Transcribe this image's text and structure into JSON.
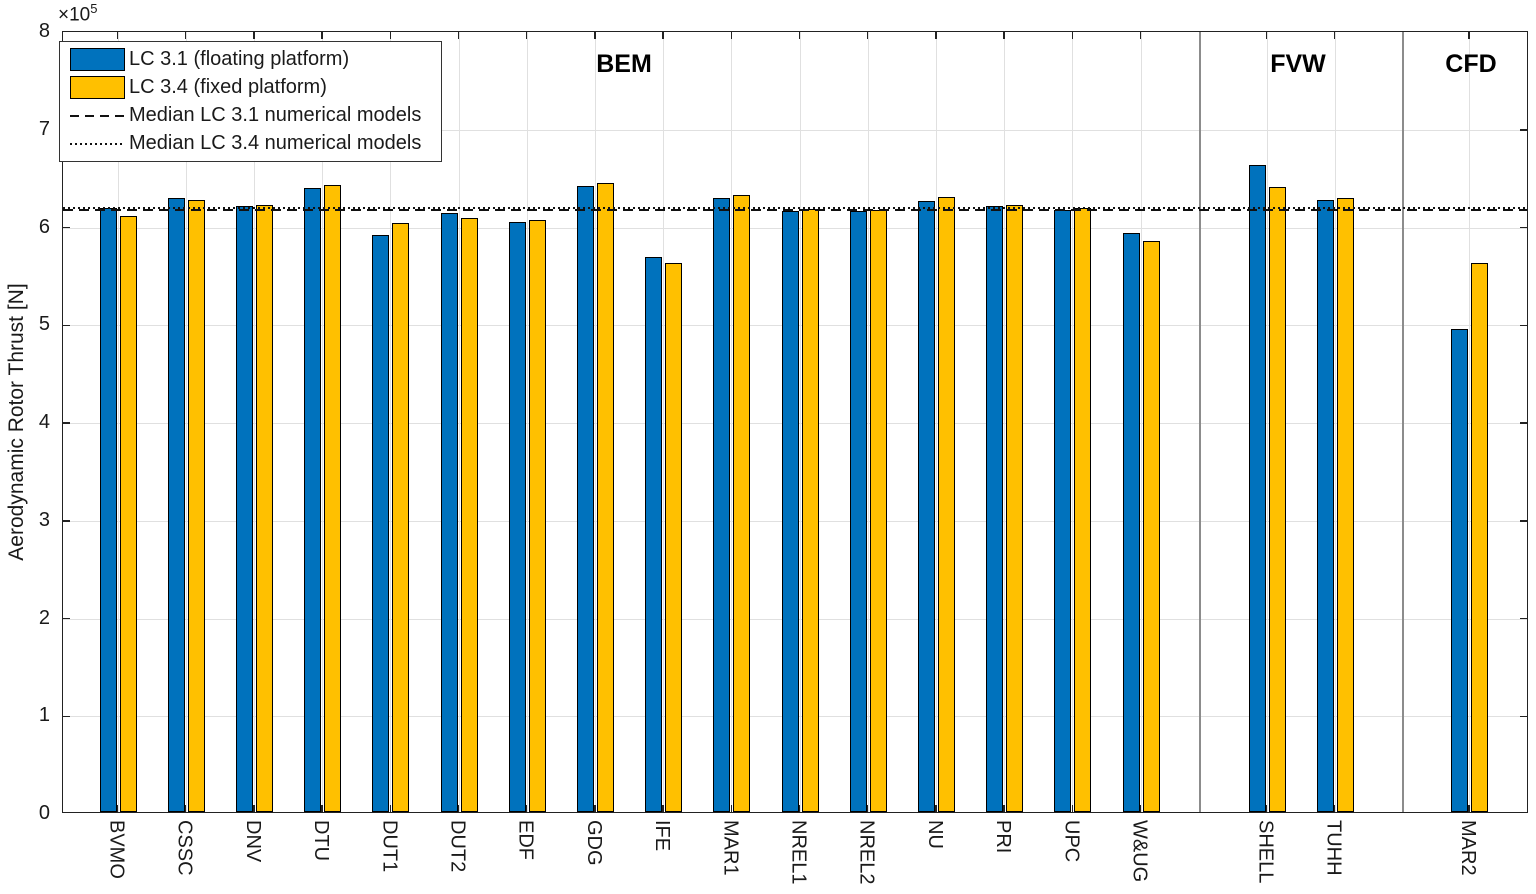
{
  "y_axis": {
    "label": "Aerodynamic Rotor Thrust [N]",
    "exponent_base": "×10",
    "exponent_power": "5",
    "ticks": [
      0,
      1,
      2,
      3,
      4,
      5,
      6,
      7,
      8
    ],
    "tick_scale": 100000
  },
  "legend": {
    "items": [
      {
        "label": "LC 3.1 (floating platform)",
        "type": "swatch",
        "color": "#0072BD"
      },
      {
        "label": "LC 3.4 (fixed platform)",
        "type": "swatch",
        "color": "#FFC000"
      },
      {
        "label": "Median LC 3.1 numerical models",
        "type": "line",
        "style": "dashed",
        "color": "#111111"
      },
      {
        "label": "Median LC 3.4 numerical models",
        "type": "line",
        "style": "dotted",
        "color": "#111111"
      }
    ]
  },
  "colors": {
    "lc31": "#0072BD",
    "lc34": "#FFC000",
    "grid": "#E0E0E0",
    "axis": "#222222",
    "separator": "#8C8C8C"
  },
  "chart_data": {
    "type": "bar",
    "title": "",
    "xlabel": "",
    "ylabel": "Aerodynamic Rotor Thrust [N]",
    "ylim": [
      0,
      800000
    ],
    "y_unit": "N",
    "grid": true,
    "legend_position": "top-left",
    "categories": [
      "BVMO",
      "CSSC",
      "DNV",
      "DTU",
      "DUT1",
      "DUT2",
      "EDF",
      "GDG",
      "IFE",
      "MAR1",
      "NREL1",
      "NREL2",
      "NU",
      "PRI",
      "UPC",
      "W&UG",
      "SHELL",
      "TUHH",
      "MAR2"
    ],
    "series": [
      {
        "name": "LC 3.1 (floating platform)",
        "color": "#0072BD",
        "values": [
          618000,
          628000,
          620000,
          638000,
          590000,
          613000,
          604000,
          640000,
          568000,
          628000,
          615000,
          615000,
          625000,
          620000,
          616000,
          592000,
          662000,
          626000,
          494000
        ]
      },
      {
        "name": "LC 3.4 (fixed platform)",
        "color": "#FFC000",
        "values": [
          610000,
          626000,
          621000,
          641000,
          603000,
          608000,
          606000,
          644000,
          562000,
          631000,
          617000,
          616000,
          629000,
          621000,
          618000,
          584000,
          639000,
          628000,
          562000
        ]
      }
    ],
    "reference_lines": [
      {
        "label": "Median LC 3.1 numerical models",
        "style": "dashed",
        "value": 618000
      },
      {
        "label": "Median LC 3.4 numerical models",
        "style": "dotted",
        "value": 618000
      }
    ],
    "sections": [
      {
        "label": "BEM",
        "start_index": 0,
        "end_index": 15
      },
      {
        "label": "FVW",
        "start_index": 16,
        "end_index": 17
      },
      {
        "label": "CFD",
        "start_index": 18,
        "end_index": 18
      }
    ]
  }
}
